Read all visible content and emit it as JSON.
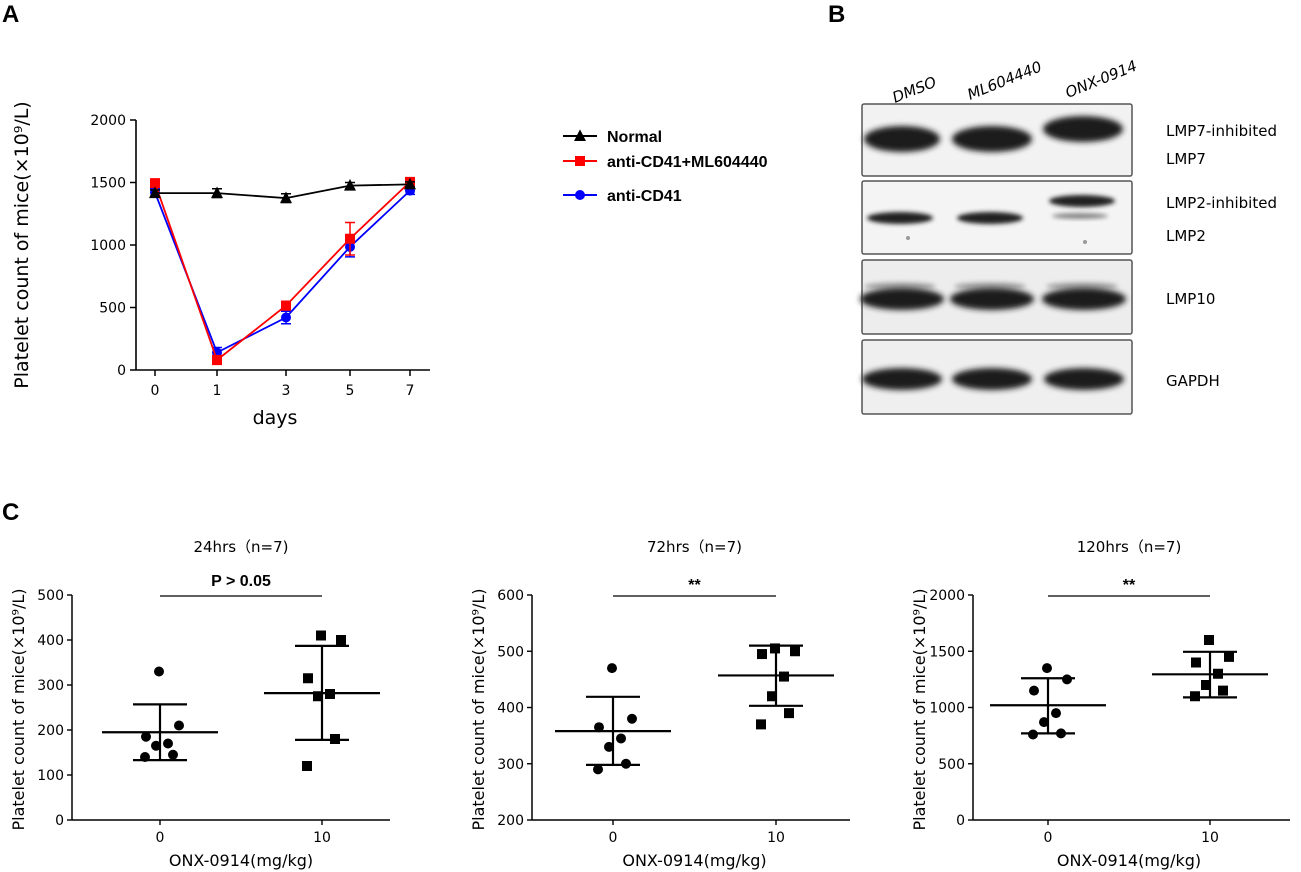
{
  "panels": {
    "a": "A",
    "b": "B",
    "c": "C"
  },
  "chart_data": [
    {
      "id": "A",
      "type": "line",
      "title": "",
      "xlabel": "days",
      "ylabel": "Platelet count of mice(×10⁹/L)",
      "categories": [
        "0",
        "1",
        "3",
        "5",
        "7"
      ],
      "ylim": [
        0,
        2000
      ],
      "yticks": [
        0,
        500,
        1000,
        1500,
        2000
      ],
      "legend_position": "right",
      "series": [
        {
          "name": "Normal",
          "color": "#000000",
          "marker": "triangle",
          "values": [
            1415,
            1415,
            1375,
            1475,
            1485
          ],
          "errors": [
            25,
            35,
            35,
            25,
            20
          ]
        },
        {
          "name": "anti-CD41+ML604440",
          "color": "#ff0000",
          "marker": "square",
          "values": [
            1495,
            80,
            515,
            1050,
            1505
          ],
          "errors": [
            25,
            35,
            35,
            130,
            25
          ]
        },
        {
          "name": "anti-CD41",
          "color": "#0000ff",
          "marker": "circle",
          "values": [
            1420,
            140,
            420,
            985,
            1435
          ],
          "errors": [
            30,
            40,
            50,
            80,
            30
          ]
        }
      ]
    },
    {
      "id": "C1",
      "type": "scatter",
      "title": "24hrs（n=7)",
      "xlabel": "ONX-0914(mg/kg)",
      "ylabel": "Platelet count of mice(×10⁹/L)",
      "categories": [
        "0",
        "10"
      ],
      "ylim": [
        0,
        500
      ],
      "yticks": [
        0,
        100,
        200,
        300,
        400,
        500
      ],
      "significance": "P > 0.05",
      "groups": [
        {
          "name": "0",
          "marker": "circle",
          "points": [
            330,
            210,
            185,
            170,
            165,
            145,
            140
          ],
          "mean": 195,
          "sd_upper": 257,
          "sd_lower": 133
        },
        {
          "name": "10",
          "marker": "square",
          "points": [
            410,
            400,
            315,
            280,
            275,
            180,
            120
          ],
          "mean": 282,
          "sd_upper": 387,
          "sd_lower": 178
        }
      ]
    },
    {
      "id": "C2",
      "type": "scatter",
      "title": "72hrs（n=7)",
      "xlabel": "ONX-0914(mg/kg)",
      "ylabel": "Platelet count of mice(×10⁹/L)",
      "categories": [
        "0",
        "10"
      ],
      "ylim": [
        200,
        600
      ],
      "yticks": [
        200,
        300,
        400,
        500,
        600
      ],
      "significance": "**",
      "groups": [
        {
          "name": "0",
          "marker": "circle",
          "points": [
            470,
            380,
            365,
            345,
            330,
            300,
            290
          ],
          "mean": 358,
          "sd_upper": 419,
          "sd_lower": 298
        },
        {
          "name": "10",
          "marker": "square",
          "points": [
            505,
            500,
            495,
            455,
            420,
            390,
            370
          ],
          "mean": 457,
          "sd_upper": 510,
          "sd_lower": 403
        }
      ]
    },
    {
      "id": "C3",
      "type": "scatter",
      "title": "120hrs（n=7)",
      "xlabel": "ONX-0914(mg/kg)",
      "ylabel": "Platelet count of mice(×10⁹/L)",
      "categories": [
        "0",
        "10"
      ],
      "ylim": [
        0,
        2000
      ],
      "yticks": [
        0,
        500,
        1000,
        1500,
        2000
      ],
      "significance": "**",
      "groups": [
        {
          "name": "0",
          "marker": "circle",
          "points": [
            1350,
            1250,
            1150,
            950,
            870,
            770,
            760
          ],
          "mean": 1020,
          "sd_upper": 1260,
          "sd_lower": 770
        },
        {
          "name": "10",
          "marker": "square",
          "points": [
            1600,
            1450,
            1400,
            1300,
            1200,
            1150,
            1100
          ],
          "mean": 1295,
          "sd_upper": 1495,
          "sd_lower": 1090
        }
      ]
    }
  ],
  "blot": {
    "lanes": [
      "DMSO",
      "ML604440",
      "ONX-0914"
    ],
    "labels": [
      "LMP7-inhibited",
      "LMP7",
      "LMP2-inhibited",
      "LMP2",
      "LMP10",
      "GAPDH"
    ]
  }
}
